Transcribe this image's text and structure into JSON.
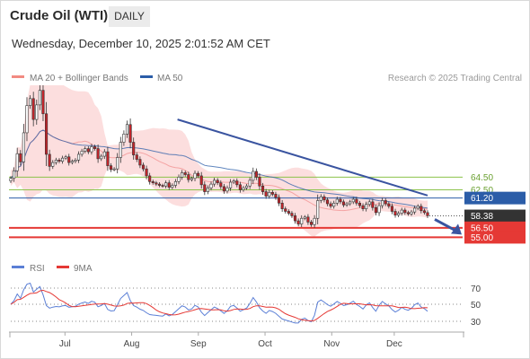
{
  "header": {
    "title": "Crude Oil (WTI)",
    "timeframe": "DAILY",
    "datetime": "Wednesday, December 10, 2025 2:01:52 AM CET"
  },
  "legend": {
    "bollinger": "MA 20 + Bollinger Bands",
    "ma50": "MA 50",
    "credit": "Research © 2025 Trading Central"
  },
  "indicator_legend": {
    "rsi": "RSI",
    "ma9": "9MA"
  },
  "colors": {
    "up": "#ffffff",
    "down": "#c4242a",
    "bollinger": "#f7a8a8",
    "ma50": "#2b5da8",
    "trend": "#3a54a0",
    "resistance": "#8bc34a",
    "pivot": "#2b5da8",
    "support": "#e53935",
    "current": "#333333",
    "rsi": "#5b7fd6",
    "ma9": "#e53935"
  },
  "chart_data": [
    {
      "type": "candlestick",
      "x_ticks": [
        "Jul",
        "Aug",
        "Sep",
        "Oct",
        "Nov",
        "Dec"
      ],
      "y_range": [
        53.5,
        79
      ],
      "levels": [
        {
          "label": "64.50",
          "value": 64.5,
          "kind": "resistance"
        },
        {
          "label": "62.50",
          "value": 62.5,
          "kind": "resistance"
        },
        {
          "label": "61.20",
          "value": 61.2,
          "kind": "pivot"
        },
        {
          "label": "58.38",
          "value": 58.38,
          "kind": "current"
        },
        {
          "label": "56.50",
          "value": 56.5,
          "kind": "support"
        },
        {
          "label": "55.00",
          "value": 55.0,
          "kind": "support"
        }
      ],
      "trendline": [
        [
          0.4,
          73.6
        ],
        [
          1.0,
          61.6
        ]
      ],
      "close": [
        64.3,
        65.5,
        68.2,
        66.9,
        71.5,
        75.8,
        76.9,
        73.6,
        75.9,
        78.2,
        74.5,
        68.1,
        66.2,
        66.8,
        67.2,
        67.0,
        67.5,
        67.7,
        66.8,
        67.0,
        67.2,
        68.1,
        68.6,
        69.0,
        68.5,
        69.3,
        69.0,
        67.4,
        67.8,
        68.5,
        66.3,
        65.7,
        65.8,
        67.6,
        70.0,
        71.3,
        72.8,
        70.0,
        68.0,
        67.3,
        66.4,
        65.8,
        64.7,
        63.8,
        63.6,
        63.4,
        63.2,
        63.1,
        63.6,
        62.9,
        63.2,
        63.8,
        64.5,
        65.2,
        64.9,
        64.1,
        64.3,
        65.1,
        64.7,
        63.3,
        62.2,
        62.8,
        63.4,
        64.0,
        63.6,
        63.0,
        62.3,
        62.8,
        63.7,
        63.9,
        63.3,
        62.5,
        62.8,
        63.1,
        64.0,
        65.4,
        64.5,
        63.1,
        62.2,
        61.5,
        62.1,
        61.8,
        61.3,
        60.4,
        59.5,
        59.1,
        58.8,
        58.4,
        57.6,
        57.1,
        58.0,
        58.2,
        57.4,
        57.0,
        58.0,
        60.8,
        61.4,
        60.9,
        60.3,
        59.9,
        60.4,
        61.0,
        60.6,
        60.1,
        60.3,
        60.6,
        61.0,
        60.4,
        60.0,
        59.5,
        60.2,
        60.6,
        59.7,
        58.9,
        60.0,
        60.8,
        60.3,
        59.9,
        59.1,
        58.5,
        58.8,
        59.3,
        58.9,
        58.7,
        59.0,
        59.6,
        59.9,
        59.2,
        58.9,
        58.4
      ],
      "bollinger": {
        "mid": "MA 20",
        "upper": "upper band",
        "lower": "lower band"
      }
    },
    {
      "type": "line",
      "series": [
        {
          "name": "RSI"
        },
        {
          "name": "9MA"
        }
      ],
      "y_ticks": [
        70,
        50,
        30
      ]
    }
  ]
}
